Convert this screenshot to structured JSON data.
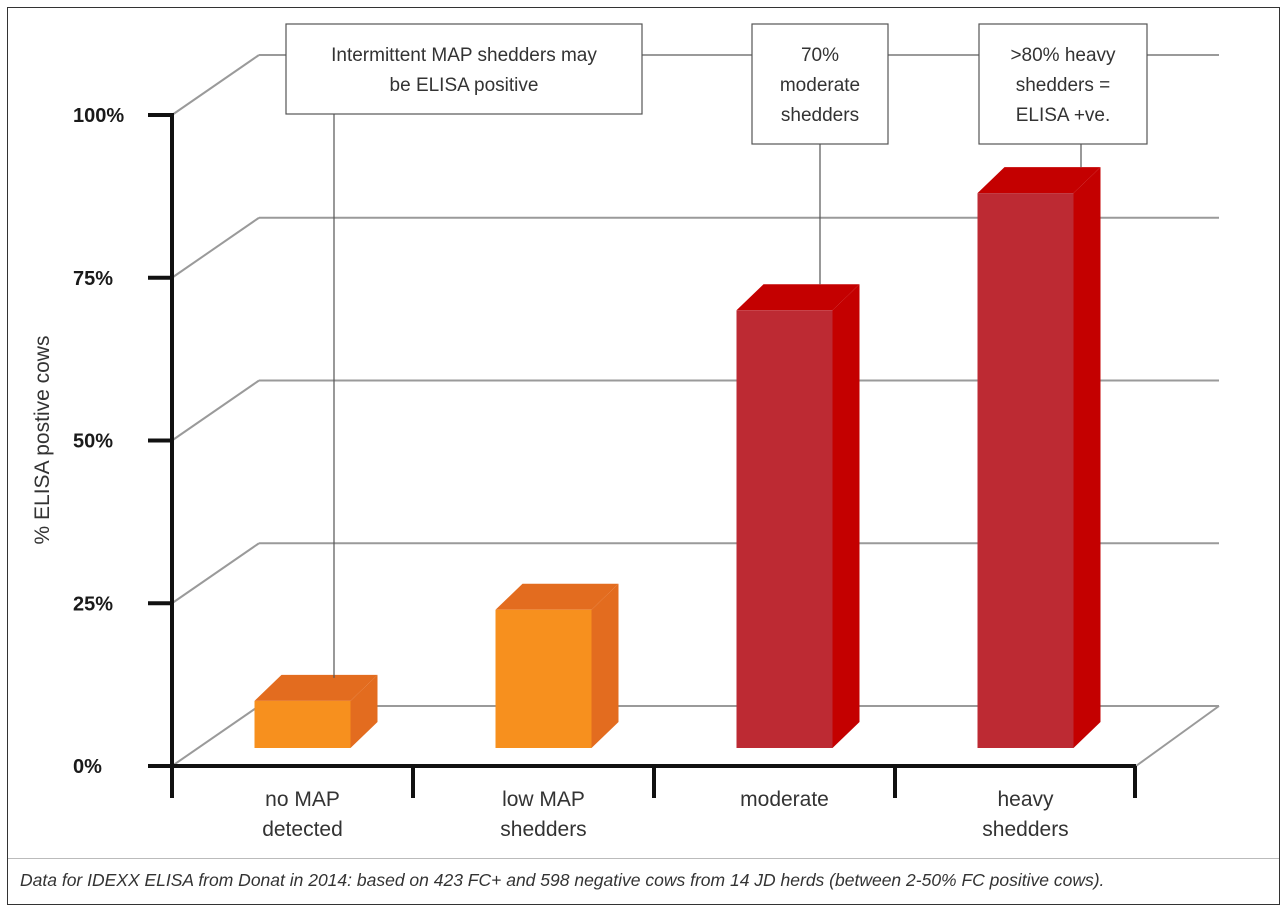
{
  "chart_data": {
    "type": "bar",
    "categories": [
      [
        "no MAP",
        "detected"
      ],
      [
        "low MAP",
        "shedders"
      ],
      [
        "moderate"
      ],
      [
        "heavy",
        "shedders"
      ]
    ],
    "values": [
      10,
      24,
      70,
      88
    ],
    "ylabel": "% ELISA postive cows",
    "xlabel": "",
    "ylim": [
      0,
      100
    ],
    "yticks": [
      "0%",
      "25%",
      "50%",
      "75%",
      "100%"
    ],
    "ytick_values": [
      0,
      25,
      50,
      75,
      100
    ],
    "grid": true,
    "colors": {
      "orange_front": "#f7901e",
      "orange_top": "#e36c1f",
      "orange_side": "#e36c1f",
      "red_front": "#bd2a33",
      "red_top": "#c40000",
      "red_side": "#c40000",
      "grid": "#9a9a9a",
      "axis": "#111111"
    },
    "bar_colors": [
      "orange",
      "orange",
      "red",
      "red"
    ],
    "annotations": [
      {
        "lines": [
          "Intermittent MAP shedders may",
          "be ELISA positive"
        ],
        "bar_index": 0
      },
      {
        "lines": [
          "70%",
          "moderate",
          "shedders"
        ],
        "bar_index": 2
      },
      {
        "lines": [
          ">80% heavy",
          "shedders =",
          "ELISA +ve."
        ],
        "bar_index": 3
      }
    ]
  },
  "footnote": "Data for IDEXX ELISA from Donat in 2014: based on 423 FC+ and 598 negative cows from 14 JD herds (between 2-50% FC positive cows)."
}
